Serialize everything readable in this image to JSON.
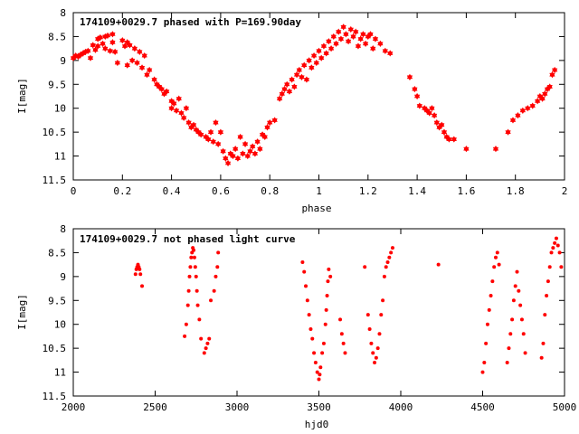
{
  "colors": {
    "points": "#ff0000",
    "axes": "#000000",
    "background": "#ffffff"
  },
  "chart_data": [
    {
      "type": "scatter",
      "title": "174109+0029.7 phased with P=169.90day",
      "xlabel": "phase",
      "ylabel": "I[mag]",
      "xlim": [
        0,
        2
      ],
      "ylim": [
        11.5,
        8
      ],
      "y_inverted": true,
      "grid": false,
      "xticks": [
        "0",
        "0.2",
        "0.4",
        "0.6",
        "0.8",
        "1",
        "1.2",
        "1.4",
        "1.6",
        "1.8",
        "2"
      ],
      "xtick_values": [
        0,
        0.2,
        0.4,
        0.6,
        0.8,
        1,
        1.2,
        1.4,
        1.6,
        1.8,
        2
      ],
      "yticks": [
        "8",
        "8.5",
        "9",
        "9.5",
        "10",
        "10.5",
        "11",
        "11.5"
      ],
      "ytick_values": [
        8,
        8.5,
        9,
        9.5,
        10,
        10.5,
        11,
        11.5
      ],
      "marker": "star",
      "x": [
        0.0,
        0.01,
        0.02,
        0.03,
        0.04,
        0.05,
        0.06,
        0.07,
        0.08,
        0.09,
        0.1,
        0.1,
        0.11,
        0.12,
        0.13,
        0.13,
        0.14,
        0.15,
        0.16,
        0.16,
        0.17,
        0.18,
        0.2,
        0.21,
        0.22,
        0.22,
        0.23,
        0.24,
        0.25,
        0.26,
        0.27,
        0.28,
        0.29,
        0.3,
        0.31,
        0.33,
        0.34,
        0.35,
        0.36,
        0.37,
        0.38,
        0.4,
        0.4,
        0.41,
        0.42,
        0.43,
        0.44,
        0.45,
        0.46,
        0.47,
        0.48,
        0.49,
        0.5,
        0.51,
        0.52,
        0.54,
        0.55,
        0.56,
        0.57,
        0.58,
        0.59,
        0.6,
        0.61,
        0.62,
        0.63,
        0.64,
        0.65,
        0.66,
        0.67,
        0.68,
        0.69,
        0.7,
        0.71,
        0.72,
        0.73,
        0.74,
        0.75,
        0.76,
        0.77,
        0.78,
        0.79,
        0.8,
        0.82,
        0.84,
        0.85,
        0.86,
        0.87,
        0.88,
        0.89,
        0.9,
        0.91,
        0.92,
        0.93,
        0.94,
        0.95,
        0.96,
        0.97,
        0.98,
        0.99,
        1.0,
        1.01,
        1.02,
        1.03,
        1.04,
        1.05,
        1.06,
        1.07,
        1.08,
        1.09,
        1.1,
        1.11,
        1.12,
        1.13,
        1.14,
        1.15,
        1.16,
        1.17,
        1.18,
        1.19,
        1.2,
        1.21,
        1.22,
        1.23,
        1.25,
        1.27,
        1.29,
        1.37,
        1.39,
        1.4,
        1.41,
        1.43,
        1.44,
        1.45,
        1.46,
        1.47,
        1.48,
        1.49,
        1.5,
        1.51,
        1.52,
        1.53,
        1.55,
        1.6,
        1.72,
        1.77,
        1.79,
        1.81,
        1.83,
        1.85,
        1.87,
        1.89,
        1.9,
        1.91,
        1.92,
        1.93,
        1.94,
        1.95,
        1.96
      ],
      "y": [
        8.95,
        8.9,
        8.92,
        8.88,
        8.85,
        8.82,
        8.8,
        8.95,
        8.68,
        8.78,
        8.55,
        8.7,
        8.52,
        8.65,
        8.5,
        8.75,
        8.48,
        8.8,
        8.45,
        8.62,
        8.82,
        9.05,
        8.58,
        8.7,
        8.62,
        9.1,
        8.68,
        9.0,
        8.75,
        9.05,
        8.82,
        9.15,
        8.9,
        9.3,
        9.2,
        9.4,
        9.5,
        9.55,
        9.6,
        9.7,
        9.65,
        9.85,
        10.0,
        9.9,
        10.05,
        9.8,
        10.1,
        10.2,
        10.0,
        10.3,
        10.4,
        10.35,
        10.45,
        10.5,
        10.55,
        10.6,
        10.65,
        10.5,
        10.7,
        10.3,
        10.75,
        10.5,
        10.9,
        11.05,
        11.15,
        10.95,
        11.0,
        10.85,
        11.05,
        10.6,
        10.95,
        10.75,
        11.0,
        10.9,
        10.8,
        10.95,
        10.7,
        10.85,
        10.55,
        10.6,
        10.4,
        10.3,
        10.25,
        9.8,
        9.7,
        9.6,
        9.5,
        9.65,
        9.4,
        9.55,
        9.3,
        9.2,
        9.35,
        9.1,
        9.4,
        9.0,
        9.15,
        8.9,
        9.05,
        8.8,
        8.95,
        8.7,
        8.85,
        8.6,
        8.75,
        8.5,
        8.65,
        8.4,
        8.55,
        8.3,
        8.45,
        8.6,
        8.35,
        8.5,
        8.4,
        8.7,
        8.55,
        8.45,
        8.65,
        8.5,
        8.45,
        8.75,
        8.55,
        8.65,
        8.8,
        8.85,
        9.35,
        9.6,
        9.75,
        9.95,
        10.0,
        10.05,
        10.1,
        10.0,
        10.15,
        10.3,
        10.4,
        10.35,
        10.5,
        10.6,
        10.65,
        10.65,
        10.85,
        10.85,
        10.5,
        10.25,
        10.15,
        10.05,
        10.0,
        9.95,
        9.85,
        9.75,
        9.8,
        9.7,
        9.6,
        9.55,
        9.3,
        9.2
      ]
    },
    {
      "type": "scatter",
      "title": "174109+0029.7 not phased light curve",
      "xlabel": "hjd0",
      "ylabel": "I[mag]",
      "xlim": [
        2000,
        5000
      ],
      "ylim": [
        11.5,
        8
      ],
      "y_inverted": true,
      "grid": false,
      "xticks": [
        "2000",
        "2500",
        "3000",
        "3500",
        "4000",
        "4500",
        "5000"
      ],
      "xtick_values": [
        2000,
        2500,
        3000,
        3500,
        4000,
        4500,
        5000
      ],
      "yticks": [
        "8",
        "8.5",
        "9",
        "9.5",
        "10",
        "10.5",
        "11",
        "11.5"
      ],
      "ytick_values": [
        8,
        8.5,
        9,
        9.5,
        10,
        10.5,
        11,
        11.5
      ],
      "marker": "dot",
      "x": [
        2380,
        2385,
        2390,
        2395,
        2400,
        2405,
        2410,
        2420,
        2680,
        2690,
        2700,
        2705,
        2710,
        2715,
        2720,
        2725,
        2730,
        2735,
        2740,
        2745,
        2750,
        2755,
        2760,
        2770,
        2780,
        2800,
        2810,
        2820,
        2830,
        2840,
        2860,
        2870,
        2880,
        2885,
        3400,
        3410,
        3420,
        3430,
        3440,
        3450,
        3460,
        3470,
        3480,
        3490,
        3500,
        3505,
        3510,
        3520,
        3530,
        3540,
        3545,
        3550,
        3555,
        3560,
        3570,
        3630,
        3640,
        3650,
        3660,
        3780,
        3800,
        3810,
        3820,
        3830,
        3840,
        3850,
        3860,
        3870,
        3880,
        3890,
        3900,
        3910,
        3920,
        3930,
        3940,
        3950,
        4230,
        4500,
        4510,
        4520,
        4530,
        4540,
        4550,
        4560,
        4570,
        4580,
        4590,
        4600,
        4650,
        4660,
        4670,
        4680,
        4690,
        4700,
        4710,
        4720,
        4730,
        4740,
        4750,
        4760,
        4860,
        4870,
        4880,
        4890,
        4900,
        4910,
        4920,
        4930,
        4940,
        4950,
        4960,
        4970,
        4980
      ],
      "y": [
        8.95,
        8.85,
        8.8,
        8.75,
        8.8,
        8.85,
        8.95,
        9.2,
        10.25,
        10.0,
        9.6,
        9.3,
        9.0,
        8.8,
        8.6,
        8.5,
        8.4,
        8.45,
        8.6,
        8.8,
        9.0,
        9.3,
        9.6,
        9.9,
        10.3,
        10.6,
        10.5,
        10.4,
        10.3,
        9.5,
        9.3,
        9.0,
        8.8,
        8.5,
        8.7,
        8.9,
        9.2,
        9.5,
        9.8,
        10.1,
        10.3,
        10.6,
        10.8,
        11.0,
        11.15,
        11.05,
        10.9,
        10.6,
        10.4,
        10.0,
        9.7,
        9.4,
        9.1,
        8.85,
        9.0,
        9.9,
        10.2,
        10.4,
        10.6,
        8.8,
        9.8,
        10.1,
        10.4,
        10.6,
        10.8,
        10.7,
        10.5,
        10.2,
        9.8,
        9.5,
        9.0,
        8.8,
        8.7,
        8.6,
        8.5,
        8.4,
        8.75,
        11.0,
        10.8,
        10.4,
        10.0,
        9.7,
        9.4,
        9.1,
        8.8,
        8.6,
        8.5,
        8.75,
        10.8,
        10.5,
        10.2,
        9.9,
        9.5,
        9.2,
        8.9,
        9.3,
        9.6,
        9.9,
        10.2,
        10.6,
        10.7,
        10.4,
        9.8,
        9.4,
        9.1,
        8.8,
        8.5,
        8.4,
        8.3,
        8.2,
        8.35,
        8.5,
        8.8
      ]
    }
  ]
}
